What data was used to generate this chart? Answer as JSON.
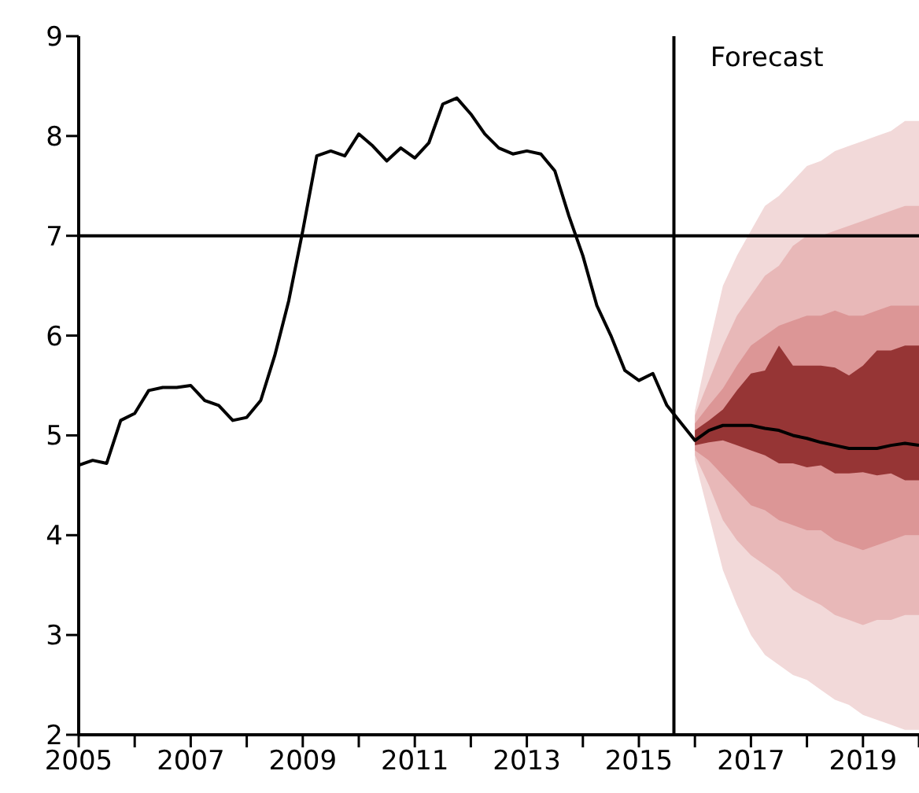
{
  "chart_data": {
    "type": "line",
    "series": [
      {
        "color": "#f2d9d9",
        "x": [
          2016,
          2016.25,
          2016.5,
          2016.75,
          2017,
          2017.25,
          2017.5,
          2017.75,
          2018,
          2018.25,
          2018.5,
          2018.75,
          2019,
          2019.25,
          2019.5,
          2019.75,
          2020
        ],
        "values": [
          null,
          null,
          null,
          null,
          null,
          null,
          null,
          null,
          null,
          null,
          null,
          null,
          null,
          null,
          null,
          null,
          null
        ],
        "lower": [
          4.75,
          4.2,
          3.65,
          3.3,
          3.0,
          2.8,
          2.7,
          2.6,
          2.55,
          2.45,
          2.35,
          2.3,
          2.2,
          2.15,
          2.1,
          2.05,
          2.05
        ],
        "upper": [
          5.25,
          5.9,
          6.5,
          6.8,
          7.05,
          7.3,
          7.4,
          7.55,
          7.7,
          7.75,
          7.85,
          7.9,
          7.95,
          8.0,
          8.05,
          8.15,
          8.15
        ]
      },
      {
        "color": "#e8b8b8",
        "x": [
          2016,
          2016.25,
          2016.5,
          2016.75,
          2017,
          2017.25,
          2017.5,
          2017.75,
          2018,
          2018.25,
          2018.5,
          2018.75,
          2019,
          2019.25,
          2019.5,
          2019.75,
          2020
        ],
        "values": [
          null,
          null,
          null,
          null,
          null,
          null,
          null,
          null,
          null,
          null,
          null,
          null,
          null,
          null,
          null,
          null,
          null
        ],
        "lower": [
          4.8,
          4.5,
          4.15,
          3.95,
          3.8,
          3.7,
          3.6,
          3.45,
          3.37,
          3.3,
          3.2,
          3.15,
          3.1,
          3.15,
          3.15,
          3.2,
          3.2
        ],
        "upper": [
          5.2,
          5.55,
          5.9,
          6.2,
          6.4,
          6.6,
          6.7,
          6.9,
          7.0,
          7.0,
          7.05,
          7.1,
          7.15,
          7.2,
          7.25,
          7.3,
          7.3
        ]
      },
      {
        "color": "#dc9696",
        "x": [
          2016,
          2016.25,
          2016.5,
          2016.75,
          2017,
          2017.25,
          2017.5,
          2017.75,
          2018,
          2018.25,
          2018.5,
          2018.75,
          2019,
          2019.25,
          2019.5,
          2019.75,
          2020
        ],
        "values": [
          null,
          null,
          null,
          null,
          null,
          null,
          null,
          null,
          null,
          null,
          null,
          null,
          null,
          null,
          null,
          null,
          null
        ],
        "lower": [
          4.85,
          4.75,
          4.6,
          4.45,
          4.3,
          4.25,
          4.15,
          4.1,
          4.05,
          4.05,
          3.95,
          3.9,
          3.85,
          3.9,
          3.95,
          4.0,
          4.0
        ],
        "upper": [
          5.12,
          5.3,
          5.47,
          5.7,
          5.9,
          6.0,
          6.1,
          6.15,
          6.2,
          6.2,
          6.25,
          6.2,
          6.2,
          6.25,
          6.3,
          6.3,
          6.3
        ]
      },
      {
        "color": "#963535",
        "x": [
          2016,
          2016.25,
          2016.5,
          2016.75,
          2017,
          2017.25,
          2017.5,
          2017.75,
          2018,
          2018.25,
          2018.5,
          2018.75,
          2019,
          2019.25,
          2019.5,
          2019.75,
          2020
        ],
        "values": [
          null,
          null,
          null,
          null,
          null,
          null,
          null,
          null,
          null,
          null,
          null,
          null,
          null,
          null,
          null,
          null,
          null
        ],
        "lower": [
          4.9,
          4.93,
          4.95,
          4.9,
          4.85,
          4.8,
          4.72,
          4.72,
          4.68,
          4.7,
          4.62,
          4.62,
          4.63,
          4.6,
          4.62,
          4.55,
          4.55
        ],
        "upper": [
          5.05,
          5.15,
          5.26,
          5.45,
          5.62,
          5.65,
          5.9,
          5.7,
          5.7,
          5.7,
          5.68,
          5.6,
          5.7,
          5.85,
          5.85,
          5.9,
          5.9
        ]
      },
      {
        "color": "#000000",
        "x": [
          2005,
          2005.25,
          2005.5,
          2005.75,
          2006,
          2006.25,
          2006.5,
          2006.75,
          2007,
          2007.25,
          2007.5,
          2007.75,
          2008,
          2008.25,
          2008.5,
          2008.75,
          2009,
          2009.25,
          2009.5,
          2009.75,
          2010,
          2010.25,
          2010.5,
          2010.75,
          2011,
          2011.25,
          2011.5,
          2011.75,
          2012,
          2012.25,
          2012.5,
          2012.75,
          2013,
          2013.25,
          2013.5,
          2013.75,
          2014,
          2014.25,
          2014.5,
          2014.75,
          2015,
          2015.25,
          2015.5,
          2016,
          2016.25,
          2016.5,
          2016.75,
          2017,
          2017.25,
          2017.5,
          2017.75,
          2018,
          2018.25,
          2018.5,
          2018.75,
          2019,
          2019.25,
          2019.5,
          2019.75,
          2020
        ],
        "values": [
          4.7,
          4.75,
          4.72,
          5.15,
          5.22,
          5.45,
          5.48,
          5.48,
          5.5,
          5.35,
          5.3,
          5.15,
          5.18,
          5.35,
          5.8,
          6.35,
          7.05,
          7.8,
          7.85,
          7.8,
          8.02,
          7.9,
          7.75,
          7.88,
          7.78,
          7.93,
          8.32,
          8.38,
          8.22,
          8.02,
          7.88,
          7.82,
          7.85,
          7.82,
          7.65,
          7.2,
          6.8,
          6.3,
          6.0,
          5.65,
          5.55,
          5.62,
          5.3,
          4.95,
          5.05,
          5.1,
          5.1,
          5.1,
          5.07,
          5.05,
          5.0,
          4.97,
          4.93,
          4.9,
          4.87,
          4.87,
          4.87,
          4.9,
          4.92,
          4.9
        ]
      }
    ],
    "ref_lines": [
      {
        "axis": "y",
        "value": 7,
        "color": "#000000"
      },
      {
        "axis": "x",
        "value": 2015.625,
        "label": "Forecast",
        "color": "#000000"
      }
    ],
    "xlim": [
      2005,
      2020
    ],
    "xticks": [
      2005,
      {
        "value": 2006,
        "label": null
      },
      2007,
      {
        "value": 2008,
        "label": null
      },
      2009,
      {
        "value": 2010,
        "label": null
      },
      2011,
      {
        "value": 2012,
        "label": null
      },
      2013,
      {
        "value": 2014,
        "label": null
      },
      2015,
      {
        "value": 2016,
        "label": null
      },
      2017,
      {
        "value": 2018,
        "label": null
      },
      2019,
      {
        "value": 2020,
        "label": null
      }
    ],
    "ylim": [
      2,
      9
    ],
    "yticks": [
      2,
      3,
      4,
      5,
      6,
      7,
      8,
      9
    ],
    "grid": false,
    "legend": false
  }
}
